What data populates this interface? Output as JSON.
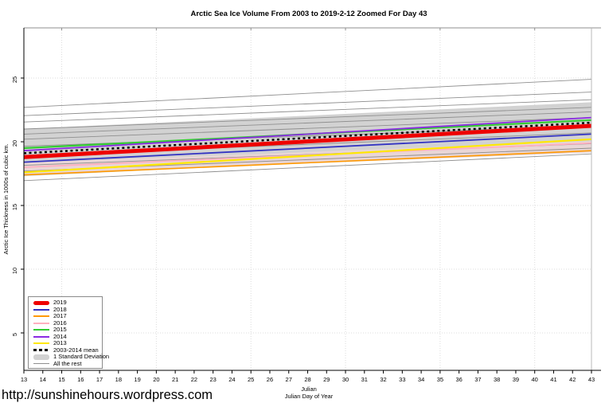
{
  "footer": {
    "url": "http://sunshinehours.wordpress.com"
  },
  "chart_data": {
    "type": "line",
    "title": "Arctic Sea Ice Volume From 2003 to 2019-2-12 Zoomed For Day 43",
    "ylabel": "Arctic Ice Thickness in 1000s of cubic km.",
    "xlabel_line1": "Julian",
    "xlabel_line2": "Julian Day of Year",
    "x_range": [
      13,
      43
    ],
    "ylim": [
      1.75,
      28.9
    ],
    "x_ticks": [
      13,
      14,
      15,
      16,
      17,
      18,
      19,
      20,
      21,
      22,
      23,
      24,
      25,
      26,
      27,
      28,
      29,
      30,
      31,
      32,
      33,
      34,
      35,
      36,
      37,
      38,
      39,
      40,
      41,
      42,
      43
    ],
    "y_ticks": [
      5,
      10,
      15,
      20,
      25
    ],
    "grid_x_values": [
      15,
      20,
      25,
      30,
      35,
      40
    ],
    "grid_y_values": [
      5,
      10,
      15,
      20,
      25
    ],
    "x_points": [
      13,
      43
    ],
    "series": [
      {
        "name": "2019",
        "color": "#ee0000",
        "width": 5,
        "dash": null,
        "values": [
          18.8,
          21.25
        ]
      },
      {
        "name": "2018",
        "color": "#3333c2",
        "width": 1.8,
        "dash": null,
        "values": [
          18.4,
          20.6
        ]
      },
      {
        "name": "2017",
        "color": "#ff9900",
        "width": 1.6,
        "dash": null,
        "values": [
          17.4,
          19.3
        ]
      },
      {
        "name": "2016",
        "color": "#ffb0c0",
        "width": 1.8,
        "dash": null,
        "values": [
          18.0,
          19.9
        ]
      },
      {
        "name": "2015",
        "color": "#33cc33",
        "width": 2.2,
        "dash": null,
        "values": [
          19.5,
          21.7
        ]
      },
      {
        "name": "2014",
        "color": "#8a2be2",
        "width": 1.8,
        "dash": null,
        "values": [
          19.3,
          21.9
        ]
      },
      {
        "name": "2013",
        "color": "#ffe800",
        "width": 2.2,
        "dash": null,
        "values": [
          17.6,
          20.2
        ]
      },
      {
        "name": "2003-2014 mean",
        "color": "#000000",
        "width": 2.5,
        "dash": "3 3.5",
        "values": [
          19.1,
          21.5
        ]
      }
    ],
    "bands": [
      {
        "name": "1 Standard Deviation",
        "color": "#d2d2d2",
        "top": [
          21.0,
          23.1
        ],
        "bottom": [
          17.3,
          19.4
        ]
      },
      {
        "name": "pale-pink-band",
        "color": "#e9d6d6",
        "top": [
          18.35,
          20.05
        ],
        "bottom": [
          17.45,
          19.15
        ]
      }
    ],
    "rest_lines": {
      "name": "All the rest",
      "color": "#8f8f8f",
      "width": 0.9,
      "values": [
        [
          22.7,
          24.9
        ],
        [
          22.05,
          23.9
        ],
        [
          21.55,
          23.3
        ],
        [
          21.0,
          22.7
        ],
        [
          20.6,
          22.35
        ],
        [
          20.2,
          21.9
        ],
        [
          19.65,
          21.25
        ],
        [
          18.9,
          20.7
        ],
        [
          18.15,
          19.85
        ],
        [
          17.7,
          19.5
        ],
        [
          16.95,
          19.05
        ]
      ]
    },
    "legend_items": [
      {
        "label": "2019",
        "color": "#ee0000",
        "kind": "thick"
      },
      {
        "label": "2018",
        "color": "#3333c2",
        "kind": "line"
      },
      {
        "label": "2017",
        "color": "#ff9900",
        "kind": "line"
      },
      {
        "label": "2016",
        "color": "#ffb0c0",
        "kind": "line"
      },
      {
        "label": "2015",
        "color": "#33cc33",
        "kind": "line"
      },
      {
        "label": "2014",
        "color": "#8a2be2",
        "kind": "line"
      },
      {
        "label": "2013",
        "color": "#ffe800",
        "kind": "line"
      },
      {
        "label": "2003-2014 mean",
        "color": "#000000",
        "kind": "dashed"
      },
      {
        "label": "1 Standard Deviation",
        "color": "#d2d2d2",
        "kind": "band"
      },
      {
        "label": "All the rest",
        "color": "#8f8f8f",
        "kind": "thin"
      }
    ]
  }
}
